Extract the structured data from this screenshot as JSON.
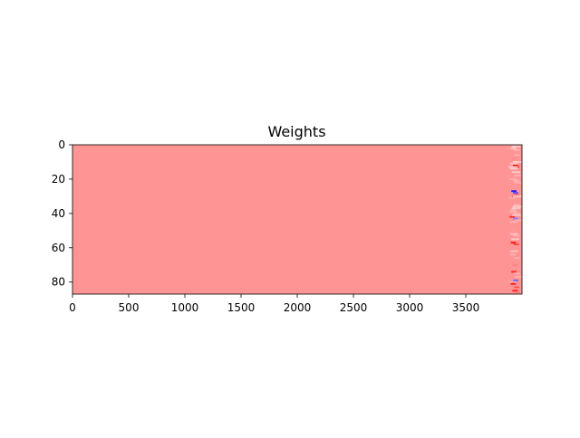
{
  "chart_data": {
    "type": "heatmap",
    "title": "Weights",
    "xlabel": "",
    "ylabel": "",
    "x_range": [
      0,
      4000
    ],
    "y_range": [
      87,
      0
    ],
    "y_inverted": true,
    "x_ticks": [
      "0",
      "500",
      "1000",
      "1500",
      "2000",
      "2500",
      "3000",
      "3500"
    ],
    "y_ticks": [
      "0",
      "20",
      "40",
      "60",
      "80"
    ],
    "colormap": "bwr",
    "colors": {
      "background": "#ff9494",
      "positive": "#ff0000",
      "negative": "#0000ff",
      "neutral": "#ffffff"
    },
    "notable_columns_from": 3880,
    "notable_cells": [
      {
        "row": 2,
        "col": 3900,
        "value": 0.2
      },
      {
        "row": 3,
        "col": 3935,
        "value": 0.3
      },
      {
        "row": 8,
        "col": 3910,
        "value": 0.45
      },
      {
        "row": 12,
        "col": 3920,
        "value": 0.95
      },
      {
        "row": 13,
        "col": 3930,
        "value": 0.8
      },
      {
        "row": 20,
        "col": 3895,
        "value": 0.35
      },
      {
        "row": 27,
        "col": 3905,
        "value": -0.9
      },
      {
        "row": 28,
        "col": 3920,
        "value": -0.7
      },
      {
        "row": 29,
        "col": 3930,
        "value": 0.6
      },
      {
        "row": 30,
        "col": 3915,
        "value": 0.9
      },
      {
        "row": 38,
        "col": 3900,
        "value": 0.3
      },
      {
        "row": 42,
        "col": 3890,
        "value": 0.85
      },
      {
        "row": 43,
        "col": 3920,
        "value": -0.5
      },
      {
        "row": 44,
        "col": 3935,
        "value": 0.7
      },
      {
        "row": 50,
        "col": 3910,
        "value": 0.4
      },
      {
        "row": 57,
        "col": 3900,
        "value": 0.9
      },
      {
        "row": 58,
        "col": 3925,
        "value": 0.75
      },
      {
        "row": 64,
        "col": 3895,
        "value": 0.3
      },
      {
        "row": 70,
        "col": 3915,
        "value": 0.5
      },
      {
        "row": 74,
        "col": 3905,
        "value": 0.85
      },
      {
        "row": 79,
        "col": 3920,
        "value": -0.6
      },
      {
        "row": 81,
        "col": 3900,
        "value": 0.95
      },
      {
        "row": 83,
        "col": 3930,
        "value": 0.7
      },
      {
        "row": 85,
        "col": 3915,
        "value": 0.9
      },
      {
        "row": 86,
        "col": 3935,
        "value": 0.5
      }
    ]
  }
}
